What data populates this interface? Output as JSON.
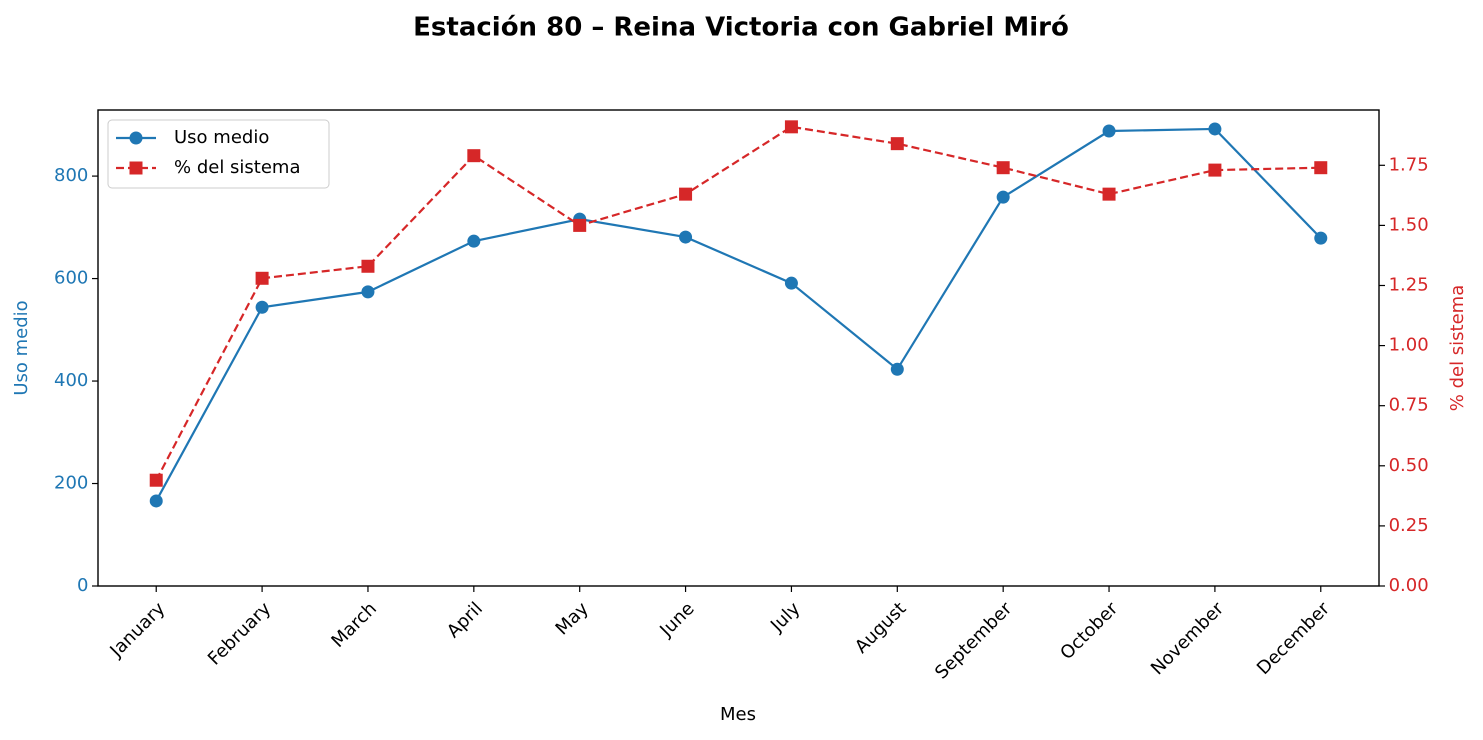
{
  "chart_data": {
    "type": "line",
    "title": "Estación 80 – Reina Victoria con Gabriel Miró",
    "x_label": "Mes",
    "y_label": "Uso medio",
    "y2_label": "% del sistema",
    "categories": [
      "January",
      "February",
      "March",
      "April",
      "May",
      "June",
      "July",
      "August",
      "September",
      "October",
      "November",
      "December"
    ],
    "series": [
      {
        "name": "Uso medio",
        "color": "#1f77b4",
        "marker": "circle",
        "linestyle": "solid",
        "values": [
          166,
          544,
          574,
          673,
          716,
          681,
          591,
          423,
          759,
          888,
          892,
          679
        ]
      },
      {
        "name": "% del sistema",
        "color": "#d62728",
        "marker": "square",
        "linestyle": "dashed",
        "axis": "y2",
        "values": [
          0.44,
          1.28,
          1.33,
          1.79,
          1.5,
          1.63,
          1.91,
          1.84,
          1.74,
          1.63,
          1.73,
          1.74
        ]
      }
    ],
    "ylim": [
      0,
      929
    ],
    "yticks": [
      0,
      200,
      400,
      600,
      800
    ],
    "y2lim": [
      0,
      1.98
    ],
    "y2ticks": [
      {
        "value": 0,
        "label": "0.00"
      },
      0.25,
      {
        "value": 0.5,
        "label": "0.50"
      },
      0.75,
      {
        "value": 1,
        "label": "1.00"
      },
      1.25,
      {
        "value": 1.5,
        "label": "1.50"
      },
      1.75
    ],
    "legend": "upper left",
    "grid": false
  }
}
